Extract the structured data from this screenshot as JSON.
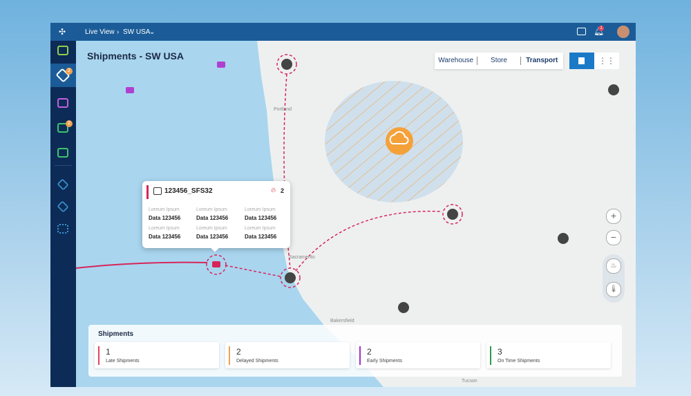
{
  "topbar": {
    "breadcrumb": [
      "Live View",
      "SW USA"
    ],
    "notifications": 1
  },
  "sidebar": {
    "badges": [
      2,
      2
    ]
  },
  "title": "Shipments - SW USA",
  "view_toggle": [
    "Warehouse",
    "Store",
    "Transport"
  ],
  "map_labels": [
    "Portland",
    "Sacramento",
    "Bakersfield",
    "Tucson"
  ],
  "popup": {
    "id": "123456_SFS32",
    "alerts": 2,
    "fields": [
      {
        "label": "Loreum Ipsum",
        "value": "Data 123456"
      },
      {
        "label": "Loreum Ipsum",
        "value": "Data 123456"
      },
      {
        "label": "Loreum Ipsum",
        "value": "Data 123456"
      },
      {
        "label": "Loreum Ipsum",
        "value": "Data 123456"
      },
      {
        "label": "Loreum Ipsum",
        "value": "Data 123456"
      },
      {
        "label": "Loreum Ipsum",
        "value": "Data 123456"
      }
    ]
  },
  "summary": {
    "title": "Shipments",
    "cards": [
      {
        "count": 1,
        "label": "Late Shipments",
        "color": "#e0455a"
      },
      {
        "count": 2,
        "label": "Delayed Shipments",
        "color": "#f0a050"
      },
      {
        "count": 2,
        "label": "Early Shipments",
        "color": "#a030c8"
      },
      {
        "count": 3,
        "label": "On Time Shipments",
        "color": "#2a9a50"
      }
    ]
  }
}
